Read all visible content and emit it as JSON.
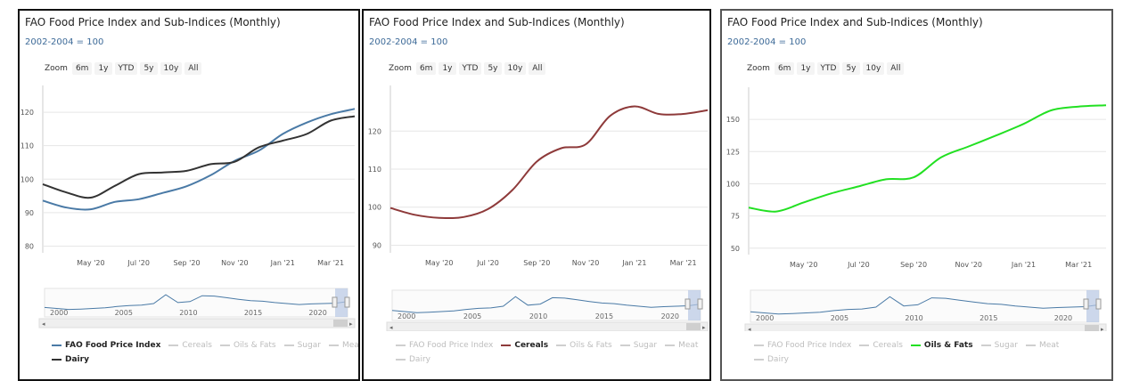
{
  "panels": [
    {
      "title": "FAO Food Price Index and Sub-Indices (Monthly)",
      "subtitle": "2002-2004 = 100",
      "zoom": {
        "label": "Zoom",
        "buttons": [
          "6m",
          "1y",
          "YTD",
          "5y",
          "10y",
          "All"
        ]
      },
      "legend": [
        {
          "name": "FAO Food Price Index",
          "active": true,
          "color": "#4a7aa6"
        },
        {
          "name": "Cereals",
          "active": false,
          "color": "#8e3a3a"
        },
        {
          "name": "Oils & Fats",
          "active": false,
          "color": "#22e022"
        },
        {
          "name": "Sugar",
          "active": false,
          "color": "#bbbbbb"
        },
        {
          "name": "Meat",
          "active": false,
          "color": "#bbbbbb"
        },
        {
          "name": "Dairy",
          "active": true,
          "color": "#333333"
        }
      ],
      "navigator_labels": [
        "2000",
        "2005",
        "2010",
        "2015",
        "2020"
      ]
    },
    {
      "title": "FAO Food Price Index and Sub-Indices (Monthly)",
      "subtitle": "2002-2004 = 100",
      "zoom": {
        "label": "Zoom",
        "buttons": [
          "6m",
          "1y",
          "YTD",
          "5y",
          "10y",
          "All"
        ]
      },
      "legend": [
        {
          "name": "FAO Food Price Index",
          "active": false,
          "color": "#4a7aa6"
        },
        {
          "name": "Cereals",
          "active": true,
          "color": "#8e3a3a"
        },
        {
          "name": "Oils & Fats",
          "active": false,
          "color": "#22e022"
        },
        {
          "name": "Sugar",
          "active": false,
          "color": "#bbbbbb"
        },
        {
          "name": "Meat",
          "active": false,
          "color": "#bbbbbb"
        },
        {
          "name": "Dairy",
          "active": false,
          "color": "#333333"
        }
      ],
      "navigator_labels": [
        "2000",
        "2005",
        "2010",
        "2015",
        "2020"
      ]
    },
    {
      "title": "FAO Food Price Index and Sub-Indices (Monthly)",
      "subtitle": "2002-2004 = 100",
      "zoom": {
        "label": "Zoom",
        "buttons": [
          "6m",
          "1y",
          "YTD",
          "5y",
          "10y",
          "All"
        ]
      },
      "legend": [
        {
          "name": "FAO Food Price Index",
          "active": false,
          "color": "#4a7aa6"
        },
        {
          "name": "Cereals",
          "active": false,
          "color": "#8e3a3a"
        },
        {
          "name": "Oils & Fats",
          "active": true,
          "color": "#22e022"
        },
        {
          "name": "Sugar",
          "active": false,
          "color": "#bbbbbb"
        },
        {
          "name": "Meat",
          "active": false,
          "color": "#bbbbbb"
        },
        {
          "name": "Dairy",
          "active": false,
          "color": "#bbbbbb"
        }
      ],
      "navigator_labels": [
        "2000",
        "2005",
        "2010",
        "2015",
        "2020"
      ]
    }
  ],
  "chart_data": [
    {
      "type": "line",
      "title": "FAO Food Price Index and Sub-Indices (Monthly)",
      "subtitle": "2002-2004 = 100",
      "x": [
        "2020-03",
        "2020-04",
        "2020-05",
        "2020-06",
        "2020-07",
        "2020-08",
        "2020-09",
        "2020-10",
        "2020-11",
        "2020-12",
        "2021-01",
        "2021-02",
        "2021-03",
        "2021-04"
      ],
      "x_ticks": [
        "May '20",
        "Jul '20",
        "Sep '20",
        "Nov '20",
        "Jan '21",
        "Mar '21"
      ],
      "y_ticks": [
        80,
        90,
        100,
        110,
        120
      ],
      "ylim": [
        78,
        128
      ],
      "series": [
        {
          "name": "FAO Food Price Index",
          "color": "#4a7aa6",
          "values": [
            93.6,
            91.5,
            91.0,
            93.2,
            94.0,
            95.9,
            97.9,
            101.2,
            105.5,
            108.5,
            113.5,
            116.9,
            119.4,
            121.0
          ]
        },
        {
          "name": "Dairy",
          "color": "#333333",
          "values": [
            98.5,
            96.0,
            94.5,
            98.0,
            101.5,
            102.0,
            102.5,
            104.5,
            105.2,
            109.5,
            111.5,
            113.5,
            117.5,
            118.8
          ]
        }
      ],
      "grid": true,
      "legend_position": "bottom"
    },
    {
      "type": "line",
      "title": "FAO Food Price Index and Sub-Indices (Monthly)",
      "subtitle": "2002-2004 = 100",
      "x": [
        "2020-03",
        "2020-04",
        "2020-05",
        "2020-06",
        "2020-07",
        "2020-08",
        "2020-09",
        "2020-10",
        "2020-11",
        "2020-12",
        "2021-01",
        "2021-02",
        "2021-03",
        "2021-04"
      ],
      "x_ticks": [
        "May '20",
        "Jul '20",
        "Sep '20",
        "Nov '20",
        "Jan '21",
        "Mar '21"
      ],
      "y_ticks": [
        90,
        100,
        110,
        120
      ],
      "y_tick_labels": [
        "90",
        "100",
        "110",
        "120"
      ],
      "ylim": [
        88,
        132
      ],
      "series": [
        {
          "name": "Cereals",
          "color": "#8e3a3a",
          "values": [
            99.8,
            98.0,
            97.2,
            97.4,
            99.5,
            104.5,
            112.0,
            115.5,
            116.5,
            124.0,
            126.5,
            124.5,
            124.5,
            125.5
          ]
        }
      ],
      "grid": true,
      "legend_position": "bottom"
    },
    {
      "type": "line",
      "title": "FAO Food Price Index and Sub-Indices (Monthly)",
      "subtitle": "2002-2004 = 100",
      "x": [
        "2020-03",
        "2020-04",
        "2020-05",
        "2020-06",
        "2020-07",
        "2020-08",
        "2020-09",
        "2020-10",
        "2020-11",
        "2020-12",
        "2021-01",
        "2021-02",
        "2021-03",
        "2021-04"
      ],
      "x_ticks": [
        "May '20",
        "Jul '20",
        "Sep '20",
        "Nov '20",
        "Jan '21",
        "Mar '21"
      ],
      "y_ticks": [
        50,
        75,
        100,
        125,
        150
      ],
      "ylim": [
        45,
        175
      ],
      "series": [
        {
          "name": "Oils & Fats",
          "color": "#22e022",
          "values": [
            81.5,
            78.5,
            85.5,
            92.5,
            98.0,
            103.5,
            105.0,
            120.5,
            129.0,
            137.5,
            146.5,
            157.0,
            160.0,
            161.0
          ]
        }
      ],
      "grid": true,
      "legend_position": "bottom"
    }
  ]
}
